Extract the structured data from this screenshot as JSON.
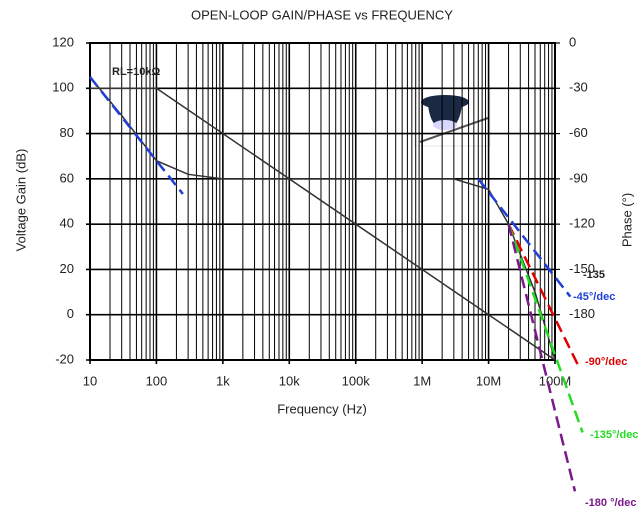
{
  "chart_data": {
    "type": "line",
    "title": "OPEN-LOOP GAIN/PHASE vs FREQUENCY",
    "x_label": "Frequency (Hz)",
    "y_label": "Voltage Gain (dB)",
    "y2_label": "Phase (°)",
    "log_x": true,
    "grid": true,
    "xlim": [
      10,
      100000000
    ],
    "xticks": [
      10,
      100,
      {
        "value": 1000,
        "label": "1k"
      },
      {
        "value": 10000,
        "label": "10k"
      },
      {
        "value": 100000,
        "label": "100k"
      },
      {
        "value": 1000000,
        "label": "1M"
      },
      {
        "value": 10000000,
        "label": "10M"
      },
      {
        "value": 100000000,
        "label": "100M"
      }
    ],
    "ylim": [
      -20,
      120
    ],
    "yticks": [
      -20,
      0,
      20,
      40,
      60,
      80,
      100,
      120
    ],
    "y2lim": [
      -210,
      0
    ],
    "y2ticks": [
      -180,
      -150,
      -120,
      -90,
      -60,
      -30,
      0
    ],
    "series": [
      {
        "color": "#333333",
        "x": [
          10,
          100,
          10000000,
          100000000
        ],
        "values": [
          100,
          100,
          0,
          -20
        ]
      },
      {
        "color": "#333333",
        "axis": "y2",
        "x": [
          10,
          30,
          100,
          300,
          1000,
          3000000,
          10000000,
          20000000,
          50000000,
          100000000
        ],
        "values": [
          -22.5,
          -48,
          -78,
          -87,
          -90,
          -90,
          -97,
          -120,
          -165,
          -210
        ]
      }
    ],
    "asymptotes": [
      {
        "color": "#1f3fd6",
        "x": [
          10,
          250
        ],
        "values": [
          -22.5,
          -100
        ]
      },
      {
        "color": "#1f3fd6",
        "label": "-45°/dec",
        "x": [
          7000000,
          170000000
        ],
        "values": [
          -90,
          -168
        ]
      },
      {
        "color": "#e00000",
        "label": "-90°/dec",
        "x": [
          20000000,
          220000000
        ],
        "values": [
          -120,
          -213
        ]
      },
      {
        "color": "#22dd22",
        "label": "-135°/dec",
        "x": [
          20000000,
          260000000
        ],
        "values": [
          -120,
          -258
        ]
      },
      {
        "color": "#7a1a8a",
        "label": "-180 °/dec",
        "x": [
          20000000,
          200000000
        ],
        "values": [
          -120,
          -297
        ]
      }
    ],
    "annotations": [
      "RL=10kΩ",
      "-135"
    ]
  }
}
